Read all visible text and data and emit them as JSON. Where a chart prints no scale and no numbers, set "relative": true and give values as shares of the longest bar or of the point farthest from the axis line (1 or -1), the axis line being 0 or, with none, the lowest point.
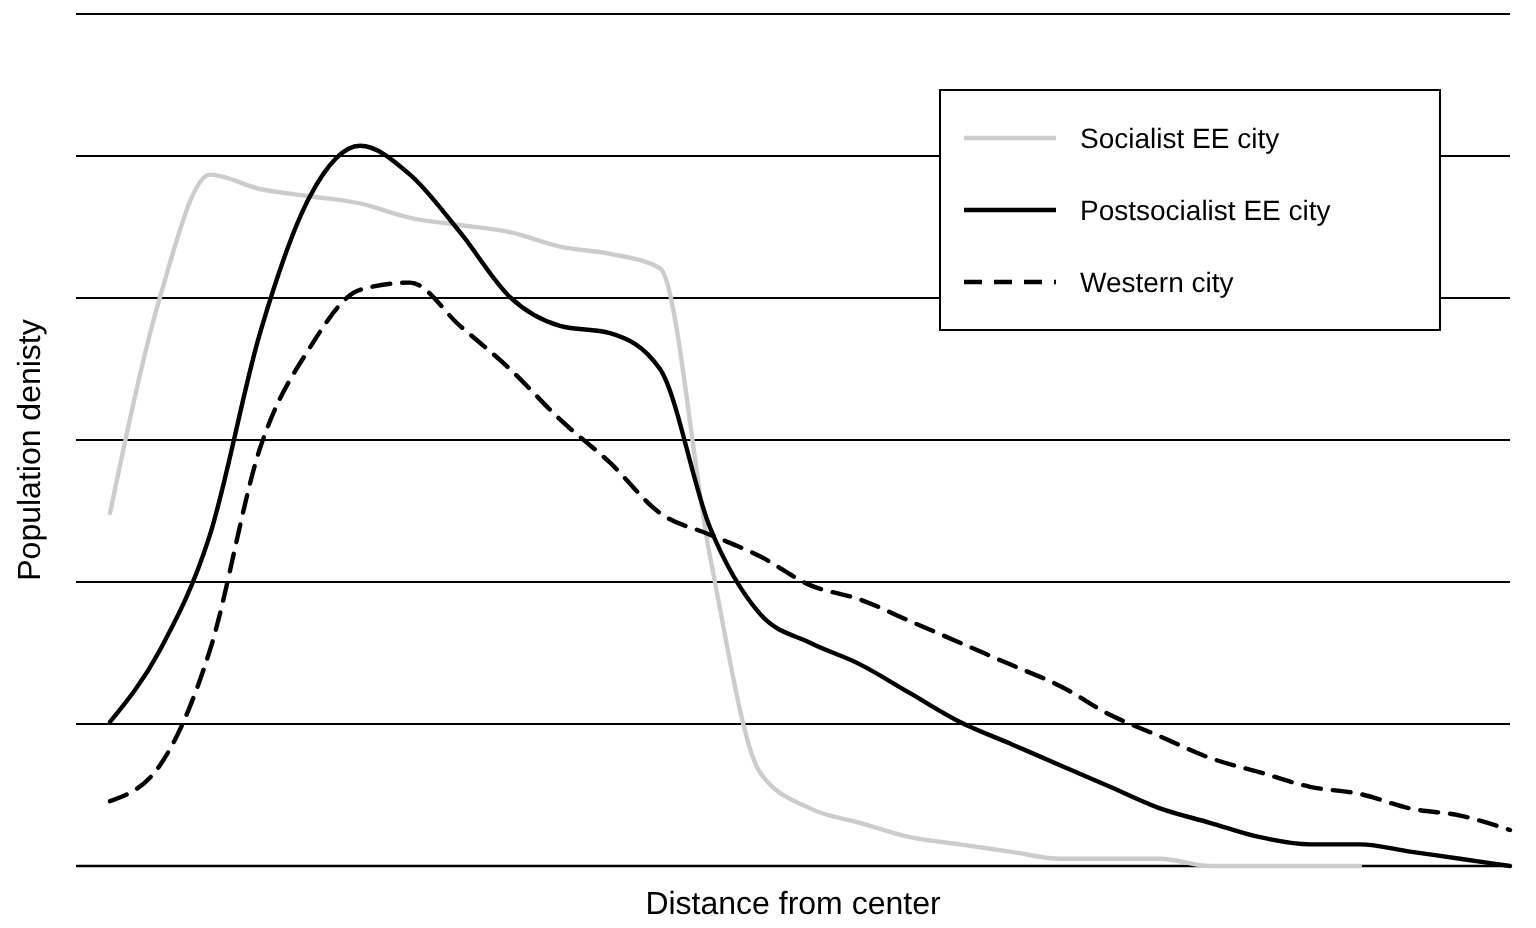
{
  "chart_data": {
    "type": "line",
    "relative": true,
    "xlabel": "Distance from center",
    "ylabel": "Population denisty",
    "grid": true,
    "legend": "top right",
    "marker": "none",
    "categories": [
      null,
      null,
      null,
      null,
      null,
      null,
      null,
      null,
      null,
      null,
      null,
      null,
      null,
      null,
      null,
      null,
      null,
      null,
      null,
      null,
      null,
      null,
      null,
      null,
      null,
      null,
      null,
      null,
      null
    ],
    "series": [
      {
        "name": "Socialist EE city",
        "color": "#cccccc",
        "line_style": "solid",
        "values": [
          0.49,
          0.79,
          0.96,
          0.94,
          0.93,
          0.92,
          0.9,
          0.89,
          0.88,
          0.86,
          0.85,
          0.83,
          0.43,
          0.13,
          0.08,
          0.06,
          0.04,
          0.03,
          0.02,
          0.01,
          0.01,
          0.01,
          0,
          0,
          0,
          0,
          null,
          null,
          null
        ]
      },
      {
        "name": "Postsocialist EE city",
        "color": "#000000",
        "line_style": "solid",
        "values": [
          0.2,
          0.3,
          0.46,
          0.74,
          0.93,
          1.0,
          0.96,
          0.88,
          0.79,
          0.75,
          0.74,
          0.69,
          0.47,
          0.35,
          0.31,
          0.28,
          0.24,
          0.2,
          0.17,
          0.14,
          0.11,
          0.08,
          0.06,
          0.04,
          0.03,
          0.03,
          0.02,
          0.01,
          0
        ]
      },
      {
        "name": "Western city",
        "color": "#000000",
        "line_style": "dashed",
        "values": [
          0.09,
          0.14,
          0.3,
          0.58,
          0.72,
          0.8,
          0.81,
          0.75,
          0.69,
          0.62,
          0.56,
          0.49,
          0.46,
          0.43,
          0.39,
          0.37,
          0.34,
          0.31,
          0.28,
          0.25,
          0.21,
          0.18,
          0.15,
          0.13,
          0.11,
          0.1,
          0.08,
          0.07,
          0.05
        ]
      }
    ]
  }
}
